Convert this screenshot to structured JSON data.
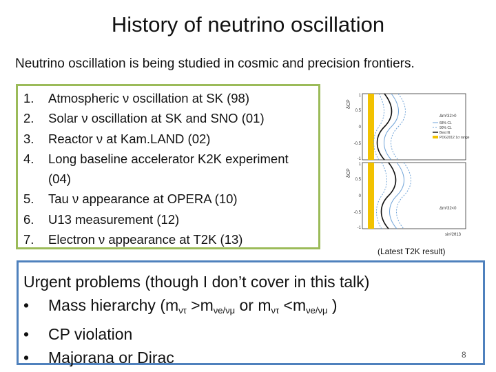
{
  "title": "History of neutrino oscillation",
  "subtitle": "Neutrino oscillation is being studied in cosmic and precision frontiers.",
  "history": [
    {
      "num": "1.",
      "text": "Atmospheric ν oscillation at SK (98)"
    },
    {
      "num": "2.",
      "text": "Solar ν oscillation at SK and SNO (01)"
    },
    {
      "num": "3.",
      "text": "Reactor ν  at Kam.LAND (02)"
    },
    {
      "num": "4.",
      "text": "Long baseline accelerator K2K experiment (04)"
    },
    {
      "num": "5.",
      "text": "Tau ν appearance at OPERA (10)"
    },
    {
      "num": "6.",
      "text": "U13 measurement (12)"
    },
    {
      "num": "7.",
      "text": "Electron ν appearance at T2K (13)"
    }
  ],
  "plot": {
    "caption": "(Latest T2K result)",
    "y_label": "δCP",
    "x_label": "sin²2θ13",
    "y_ticks": [
      "1",
      "0.5",
      "0",
      "-0.5",
      "-1"
    ],
    "legend": [
      "68% CL",
      "90% CL",
      "Best fit",
      "PDG2012 1σ range"
    ],
    "panel_top_label": "Δm²32>0",
    "panel_bottom_label": "Δm²32<0"
  },
  "urgent": {
    "heading": "Urgent problems (though I don’t cover in this talk)",
    "bullet_char": "•",
    "mass_prefix": "Mass hierarchy (m",
    "mass_sub1": "ντ",
    "mass_mid": " >m",
    "mass_sub2": "νe/νμ",
    "mass_or": "  or m",
    "mass_sub3": "ντ",
    "mass_lt": " <m",
    "mass_sub4": "νe/νμ",
    "mass_suffix": "  )",
    "cp": "CP violation",
    "majorana": "Majorana or Dirac"
  },
  "page_number": "8"
}
